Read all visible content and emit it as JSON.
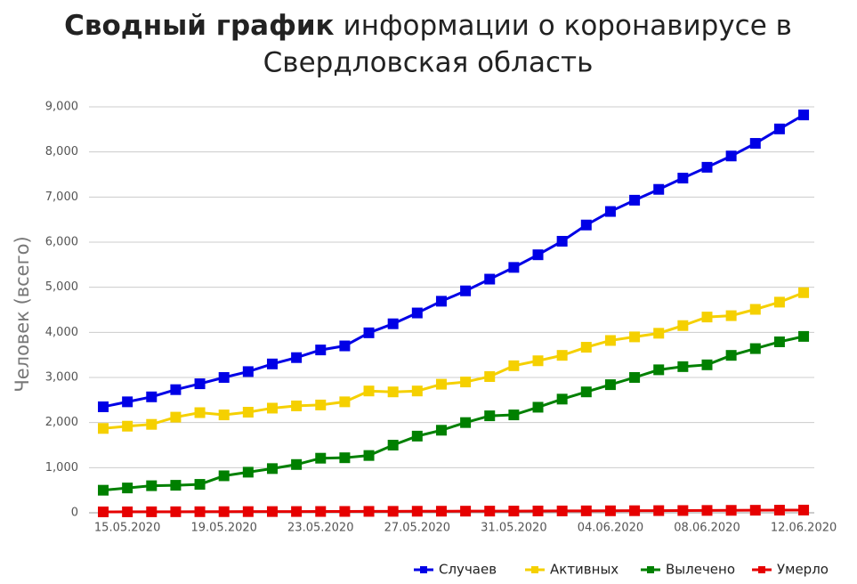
{
  "chart_data": {
    "type": "line",
    "title": {
      "bold": "Сводный график",
      "text": "информации о коронавирусе в",
      "line2": "Свердловская область"
    },
    "y_label": "Человек (всего)",
    "categories": [
      null,
      "15.05.2020",
      null,
      null,
      null,
      "19.05.2020",
      null,
      null,
      null,
      "23.05.2020",
      null,
      null,
      null,
      "27.05.2020",
      null,
      null,
      null,
      "31.05.2020",
      null,
      null,
      null,
      "04.06.2020",
      null,
      null,
      null,
      "08.06.2020",
      null,
      null,
      null,
      "12.06.2020"
    ],
    "ylim": [
      0,
      9000
    ],
    "yticks": [
      0,
      {
        "value": 1000,
        "label": "1,000"
      },
      {
        "value": 2000,
        "label": "2,000"
      },
      {
        "value": 3000,
        "label": "3,000"
      },
      {
        "value": 4000,
        "label": "4,000"
      },
      {
        "value": 5000,
        "label": "5,000"
      },
      {
        "value": 6000,
        "label": "6,000"
      },
      {
        "value": 7000,
        "label": "7,000"
      },
      {
        "value": 8000,
        "label": "8,000"
      },
      {
        "value": 9000,
        "label": "9,000"
      }
    ],
    "grid": true,
    "legend": "bottom-right",
    "series": [
      {
        "name": "Случаев",
        "color": "#0000e6",
        "values": [
          2350,
          2460,
          2570,
          2730,
          2860,
          3000,
          3130,
          3300,
          3440,
          3610,
          3700,
          3990,
          4190,
          4430,
          4690,
          4920,
          5180,
          5440,
          5720,
          6020,
          6380,
          6680,
          6930,
          7170,
          7420,
          7660,
          7910,
          8190,
          8510,
          8820
        ]
      },
      {
        "name": "Активных",
        "color": "#f5d000",
        "values": [
          1870,
          1920,
          1960,
          2120,
          2220,
          2170,
          2230,
          2320,
          2370,
          2390,
          2460,
          2700,
          2680,
          2700,
          2850,
          2900,
          3020,
          3260,
          3370,
          3490,
          3670,
          3820,
          3900,
          3980,
          4150,
          4340,
          4370,
          4510,
          4670,
          4880
        ]
      },
      {
        "name": "Вылечено",
        "color": "#008000",
        "values": [
          500,
          550,
          600,
          610,
          630,
          820,
          900,
          980,
          1070,
          1210,
          1220,
          1270,
          1500,
          1700,
          1830,
          2000,
          2150,
          2170,
          2340,
          2520,
          2680,
          2840,
          3000,
          3170,
          3240,
          3280,
          3490,
          3640,
          3790,
          3910
        ]
      },
      {
        "name": "Умерло",
        "color": "#e60000",
        "values": [
          20,
          21,
          22,
          23,
          24,
          25,
          26,
          27,
          28,
          29,
          30,
          31,
          32,
          34,
          35,
          36,
          37,
          38,
          40,
          41,
          43,
          44,
          46,
          48,
          50,
          52,
          54,
          56,
          58,
          60
        ]
      }
    ]
  }
}
